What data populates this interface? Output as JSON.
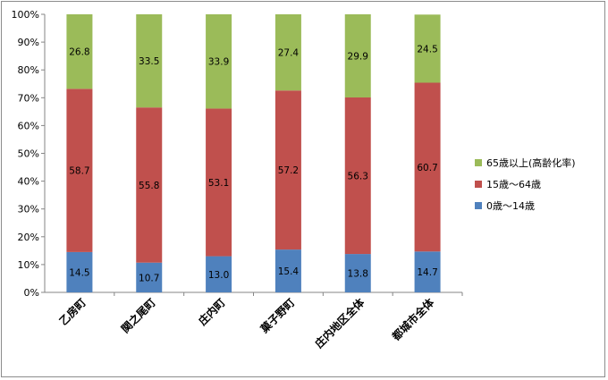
{
  "chart_data": {
    "type": "bar",
    "stacked": true,
    "categories": [
      "乙房町",
      "関之尾町",
      "庄内町",
      "菓子野町",
      "庄内地区全体",
      "都城市全体"
    ],
    "series": [
      {
        "name": "0歳～14歳",
        "values": [
          14.5,
          10.7,
          13.0,
          15.4,
          13.8,
          14.7
        ],
        "color": "#4f81bd"
      },
      {
        "name": "15歳～64歳",
        "values": [
          58.7,
          55.8,
          53.1,
          57.2,
          56.3,
          60.7
        ],
        "color": "#c0504d"
      },
      {
        "name": "65歳以上(高齢化率)",
        "values": [
          26.8,
          33.5,
          33.9,
          27.4,
          29.9,
          24.5
        ],
        "color": "#9bbb59"
      }
    ],
    "data_labels": [
      [
        "14.5",
        "10.7",
        "13.0",
        "15.4",
        "13.8",
        "14.7"
      ],
      [
        "58.7",
        "55.8",
        "53.1",
        "57.2",
        "56.3",
        "60.7"
      ],
      [
        "26.8",
        "33.5",
        "33.9",
        "27.4",
        "29.9",
        "24.5"
      ]
    ],
    "yticks": [
      "0%",
      "10%",
      "20%",
      "30%",
      "40%",
      "50%",
      "60%",
      "70%",
      "80%",
      "90%",
      "100%"
    ],
    "ylim": [
      0,
      100
    ],
    "legend_position": "right",
    "legend_order": [
      "65歳以上(高齢化率)",
      "15歳～64歳",
      "0歳～14歳"
    ],
    "grid": false,
    "title": "",
    "xlabel": "",
    "ylabel": ""
  }
}
